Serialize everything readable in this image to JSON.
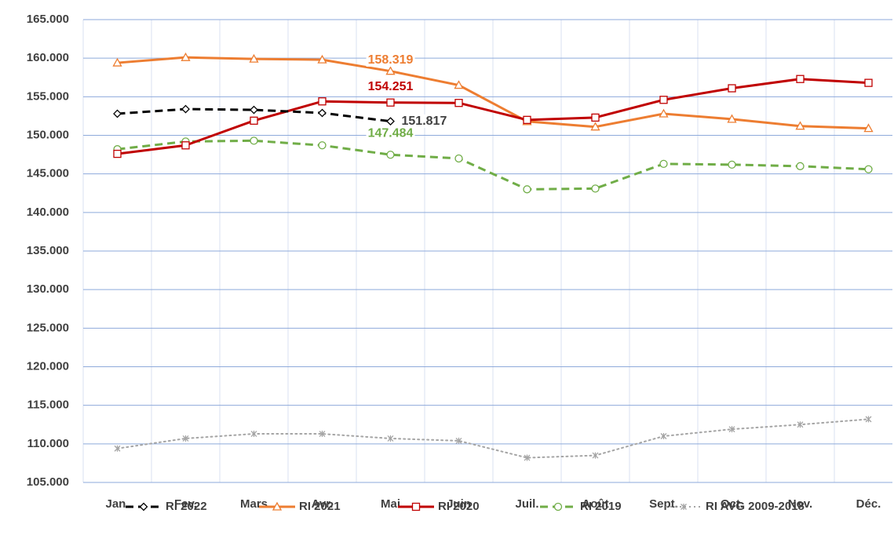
{
  "chart_data": {
    "type": "line",
    "categories": [
      "Jan.",
      "Fev.",
      "Mars",
      "Avr.",
      "Mai",
      "Juin",
      "Juil.",
      "Août",
      "Sept.",
      "Oct.",
      "Nov.",
      "Déc."
    ],
    "ylim": [
      105000,
      165000
    ],
    "yticks": [
      {
        "value": 105000,
        "label": "105.000"
      },
      {
        "value": 110000,
        "label": "110.000"
      },
      {
        "value": 115000,
        "label": "115.000"
      },
      {
        "value": 120000,
        "label": "120.000"
      },
      {
        "value": 125000,
        "label": "125.000"
      },
      {
        "value": 130000,
        "label": "130.000"
      },
      {
        "value": 135000,
        "label": "135.000"
      },
      {
        "value": 140000,
        "label": "140.000"
      },
      {
        "value": 145000,
        "label": "145.000"
      },
      {
        "value": 150000,
        "label": "150.000"
      },
      {
        "value": 155000,
        "label": "155.000"
      },
      {
        "value": 160000,
        "label": "160.000"
      },
      {
        "value": 165000,
        "label": "165.000"
      }
    ],
    "grid": true,
    "legend": "bottom",
    "series": [
      {
        "name": "RI 2022",
        "color": "#000000",
        "dash": "dash",
        "marker": "diamond",
        "label_color": "#404040",
        "values": [
          152800,
          153400,
          153300,
          152900,
          151817,
          null,
          null,
          null,
          null,
          null,
          null,
          null
        ],
        "value_labels": [
          null,
          null,
          null,
          null,
          "151.817",
          null,
          null,
          null,
          null,
          null,
          null,
          null
        ]
      },
      {
        "name": "RI 2021",
        "color": "#ed7d31",
        "dash": "solid",
        "marker": "triangle",
        "label_color": "#ed7d31",
        "values": [
          159400,
          160100,
          159900,
          159800,
          158319,
          156500,
          151800,
          151100,
          152800,
          152100,
          151200,
          150900
        ],
        "value_labels": [
          null,
          null,
          null,
          null,
          "158.319",
          null,
          null,
          null,
          null,
          null,
          null,
          null
        ]
      },
      {
        "name": "RI 2020",
        "color": "#c00000",
        "dash": "solid",
        "marker": "square",
        "label_color": "#c00000",
        "values": [
          147600,
          148700,
          151900,
          154400,
          154251,
          154200,
          152000,
          152300,
          154600,
          156100,
          157300,
          156800
        ],
        "value_labels": [
          null,
          null,
          null,
          null,
          "154.251",
          null,
          null,
          null,
          null,
          null,
          null,
          null
        ]
      },
      {
        "name": "RI 2019",
        "color": "#70ad47",
        "dash": "dash",
        "marker": "circle",
        "label_color": "#70ad47",
        "values": [
          148200,
          149200,
          149300,
          148700,
          147484,
          147000,
          143000,
          143100,
          146300,
          146200,
          146000,
          145600
        ],
        "value_labels": [
          null,
          null,
          null,
          null,
          "147.484",
          null,
          null,
          null,
          null,
          null,
          null,
          null
        ]
      },
      {
        "name": "RI AVG 2009-2018",
        "color": "#a5a5a5",
        "dash": "dot",
        "marker": "star",
        "values": [
          109400,
          110700,
          111300,
          111300,
          110700,
          110400,
          108200,
          108500,
          111000,
          111900,
          112500,
          113200
        ]
      }
    ]
  }
}
